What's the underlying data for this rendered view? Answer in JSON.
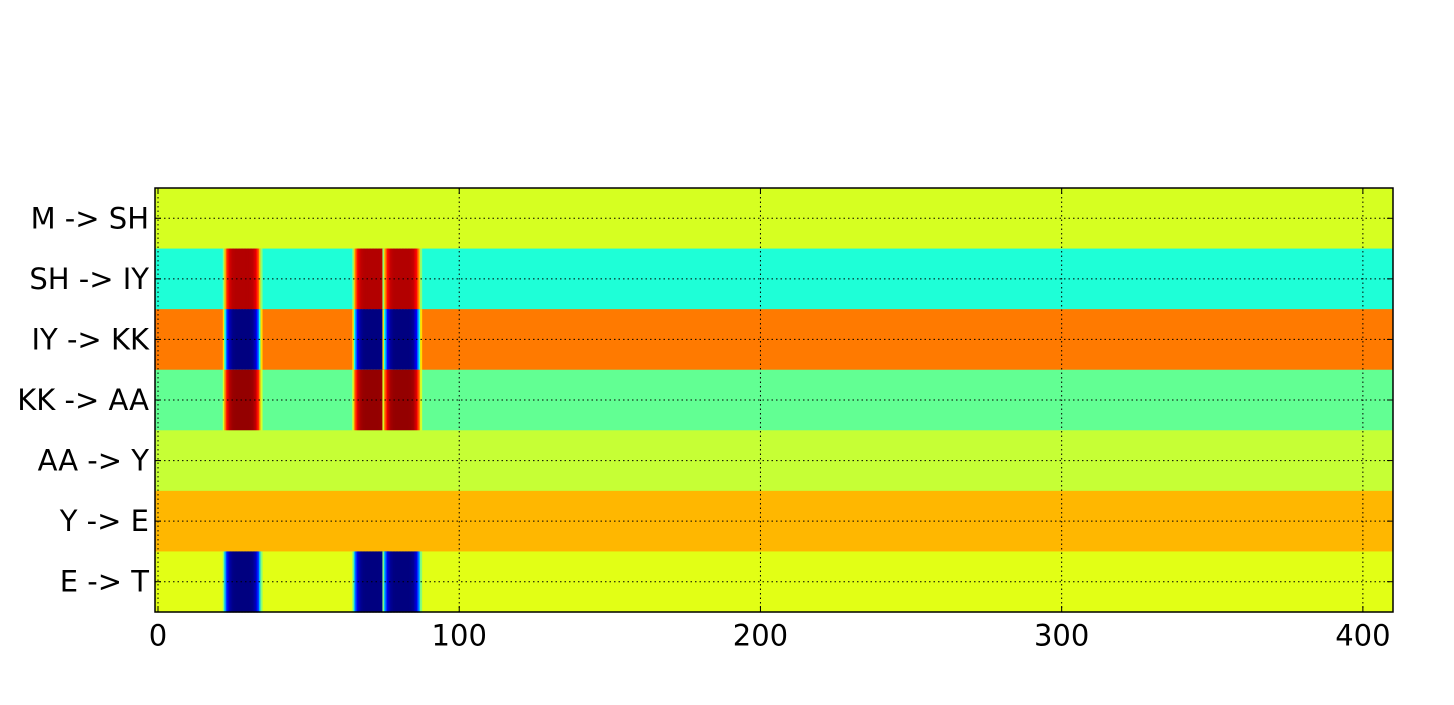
{
  "chart_data": {
    "type": "heatmap",
    "rows": [
      "M -> SH",
      "SH -> IY",
      "IY -> KK",
      "KK -> AA",
      "AA -> Y",
      "Y -> E",
      "E -> T"
    ],
    "x_ticks": [
      0,
      100,
      200,
      300,
      400
    ],
    "x_tick_labels": [
      "0",
      "100",
      "200",
      "300",
      "400"
    ],
    "xlim": [
      -1,
      410
    ],
    "grid": true,
    "colormap": "jet",
    "row_base_colors": [
      "#d6ff21",
      "#1effd7",
      "#ff7a00",
      "#62ff93",
      "#c6ff35",
      "#ffb700",
      "#e2ff15"
    ],
    "row_base_values": [
      0.62,
      0.4,
      0.83,
      0.48,
      0.59,
      0.74,
      0.64
    ],
    "pulses": [
      {
        "center": 28,
        "halfwidth": 6.5
      },
      {
        "center": 71,
        "halfwidth": 6.5
      },
      {
        "center": 81,
        "halfwidth": 6.5
      }
    ],
    "row_pulse_amplitude": [
      0,
      0.55,
      -0.83,
      0.5,
      0,
      0,
      -0.64
    ]
  }
}
